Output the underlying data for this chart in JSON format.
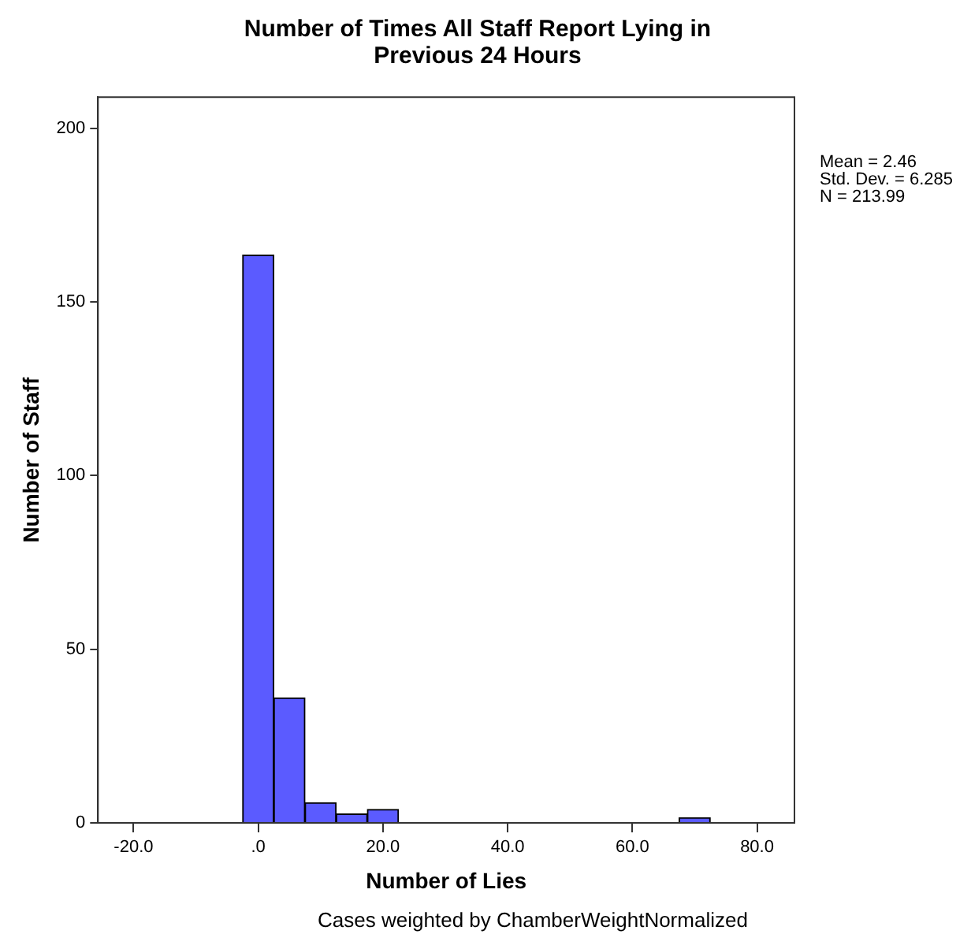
{
  "chart_data": {
    "type": "histogram",
    "title": "Number of Times All Staff Report Lying in Previous 24 Hours",
    "xlabel": "Number of Lies",
    "ylabel": "Number of Staff",
    "bins": [
      -2.5,
      2.5,
      7.5,
      12.5,
      17.5,
      22.5,
      27.5,
      32.5,
      37.5,
      42.5,
      47.5,
      52.5,
      57.5,
      62.5,
      67.5,
      72.5
    ],
    "values": [
      163.5,
      36,
      5.8,
      2.6,
      3.9,
      0,
      0,
      0,
      0,
      0,
      0,
      0,
      0,
      0,
      1.5
    ],
    "color": "#5b5bff",
    "xlim": [
      -25.7,
      86
    ],
    "xticks": [
      {
        "value": -20,
        "label": "-20.0"
      },
      {
        "value": 0,
        "label": ".0"
      },
      {
        "value": 20,
        "label": "20.0"
      },
      {
        "value": 40,
        "label": "40.0"
      },
      {
        "value": 60,
        "label": "60.0"
      },
      {
        "value": 80,
        "label": "80.0"
      }
    ],
    "ylim": [
      0,
      209
    ],
    "yticks": [
      0,
      50,
      100,
      150,
      200
    ],
    "legend": false,
    "annotations": [
      "Mean = 2.46",
      "Std. Dev. = 6.285",
      "N = 213.99",
      "Cases weighted by ChamberWeightNormalized"
    ]
  }
}
